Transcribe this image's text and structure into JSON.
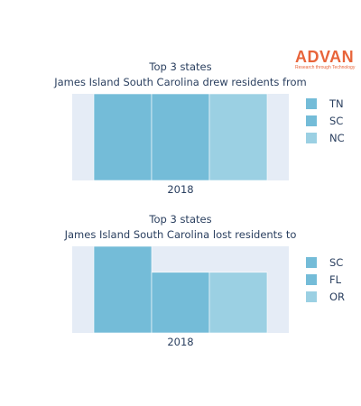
{
  "logo": {
    "name": "ADVAN",
    "tagline": "Research through Technology"
  },
  "colors": {
    "plot_bg": "#e5ecf6",
    "text": "#2a3f5f"
  },
  "chart_data": [
    {
      "type": "bar",
      "barmode": "stack",
      "title": "Top 3 states",
      "subtitle": "James Island South Carolina drew residents from",
      "categories": [
        "2018"
      ],
      "series": [
        {
          "name": "TN",
          "values": [
            1
          ],
          "color": "#74bcd8"
        },
        {
          "name": "SC",
          "values": [
            1
          ],
          "color": "#74bcd8"
        },
        {
          "name": "NC",
          "values": [
            1
          ],
          "color": "#9bd0e3"
        }
      ],
      "legend": "right"
    },
    {
      "type": "bar",
      "barmode": "stack",
      "title": "Top 3 states",
      "subtitle": "James Island South Carolina lost residents to",
      "categories": [
        "2018"
      ],
      "series": [
        {
          "name": "SC",
          "values": [
            1
          ],
          "color": "#74bcd8"
        },
        {
          "name": "FL",
          "values": [
            0.7
          ],
          "color": "#74bcd8"
        },
        {
          "name": "OR",
          "values": [
            0.7
          ],
          "color": "#9bd0e3"
        }
      ],
      "legend": "right"
    }
  ]
}
